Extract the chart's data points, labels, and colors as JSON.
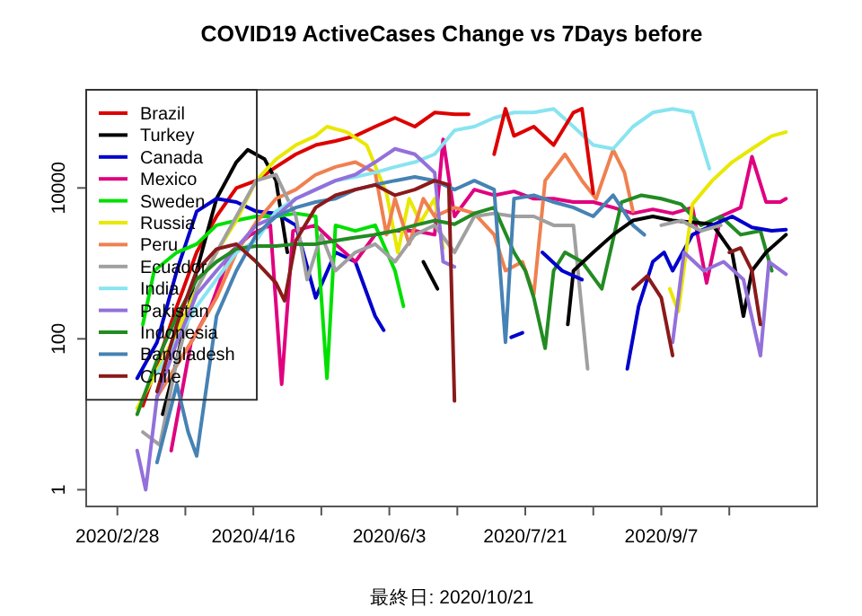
{
  "chart_data": {
    "type": "line",
    "title": "COVID19 ActiveCases Change vs 7Days before",
    "annotations": [
      "最終日: 2020/10/21"
    ],
    "xlim": [
      "2020-02-17",
      "2020-11-01"
    ],
    "xticks": [
      {
        "value": "2020-02-28",
        "label": "2020/2/28"
      },
      {
        "value": "2020-03-23",
        "label": null
      },
      {
        "value": "2020-04-16",
        "label": "2020/4/16"
      },
      {
        "value": "2020-05-10",
        "label": null
      },
      {
        "value": "2020-06-03",
        "label": "2020/6/3"
      },
      {
        "value": "2020-06-27",
        "label": null
      },
      {
        "value": "2020-07-21",
        "label": "2020/7/21"
      },
      {
        "value": "2020-08-14",
        "label": null
      },
      {
        "value": "2020-09-07",
        "label": "2020/9/7"
      },
      {
        "value": "2020-10-01",
        "label": null
      }
    ],
    "ylim": [
      0.6,
      200000
    ],
    "yticks": [
      1,
      100,
      10000
    ],
    "log": true,
    "grid": false,
    "legend": "top left",
    "series": [
      {
        "name": "Brazil",
        "color": "#dd0000",
        "x": [
          "2020-03-08",
          "2020-03-20",
          "2020-03-27",
          "2020-04-03",
          "2020-04-10",
          "2020-04-17",
          "2020-04-24",
          "2020-05-01",
          "2020-05-08",
          "2020-05-15",
          "2020-05-22",
          "2020-05-29",
          "2020-06-05",
          "2020-06-12",
          "2020-06-19",
          "2020-06-26",
          "2020-07-01"
        ],
        "values": [
          13,
          270,
          1400,
          4200,
          10000,
          12500,
          19000,
          28000,
          37000,
          42000,
          49000,
          65000,
          85000,
          65000,
          100000,
          95000,
          95000
        ]
      },
      {
        "name": "Turkey",
        "color": "#000000",
        "x": [
          "2020-03-15",
          "2020-03-20",
          "2020-03-27",
          "2020-04-03",
          "2020-04-10",
          "2020-04-14",
          "2020-04-20",
          "2020-04-24",
          "2020-04-28"
        ],
        "values": [
          10,
          52,
          800,
          7200,
          22000,
          32000,
          24000,
          12500,
          1400
        ]
      },
      {
        "name": "Canada",
        "color": "#0000cc",
        "x": [
          "2020-03-06",
          "2020-03-13",
          "2020-03-20",
          "2020-03-27",
          "2020-04-03",
          "2020-04-10",
          "2020-04-17",
          "2020-04-24",
          "2020-05-01",
          "2020-05-08",
          "2020-05-15",
          "2020-05-22",
          "2020-05-29",
          "2020-06-01"
        ],
        "values": [
          30,
          90,
          800,
          4900,
          7200,
          6500,
          4900,
          4600,
          3200,
          350,
          1400,
          1050,
          200,
          130
        ]
      },
      {
        "name": "Mexico",
        "color": "#e0007f",
        "x": [
          "2020-03-18",
          "2020-03-25",
          "2020-04-01",
          "2020-04-08",
          "2020-04-15",
          "2020-04-22",
          "2020-04-26",
          "2020-04-30",
          "2020-05-08",
          "2020-05-15",
          "2020-05-22",
          "2020-05-29",
          "2020-06-05",
          "2020-06-12",
          "2020-06-19",
          "2020-06-22",
          "2020-06-26",
          "2020-07-03",
          "2020-07-10",
          "2020-07-17",
          "2020-07-24",
          "2020-07-31",
          "2020-08-07",
          "2020-08-14",
          "2020-08-21",
          "2020-08-28",
          "2020-09-04",
          "2020-09-11",
          "2020-09-18",
          "2020-09-23",
          "2020-09-28",
          "2020-10-05",
          "2020-10-09",
          "2020-10-14",
          "2020-10-17",
          "2020-10-19",
          "2020-10-21"
        ],
        "values": [
          3.3,
          90,
          270,
          1400,
          2400,
          3200,
          25,
          2700,
          3200,
          1800,
          1050,
          2400,
          2700,
          2700,
          2400,
          44000,
          4200,
          9500,
          8000,
          9000,
          7200,
          7200,
          6500,
          6500,
          5500,
          4600,
          5200,
          4600,
          5500,
          550,
          4200,
          5500,
          26000,
          6500,
          6500,
          6500,
          7200
        ]
      },
      {
        "name": "Sweden",
        "color": "#00e000",
        "x": [
          "2020-03-08",
          "2020-03-12",
          "2020-03-20",
          "2020-03-27",
          "2020-04-03",
          "2020-04-10",
          "2020-04-17",
          "2020-04-24",
          "2020-05-01",
          "2020-05-08",
          "2020-05-12",
          "2020-05-15",
          "2020-05-22",
          "2020-05-29",
          "2020-06-05",
          "2020-06-08"
        ],
        "values": [
          155,
          800,
          1400,
          1800,
          3200,
          3700,
          4200,
          4200,
          4600,
          4200,
          30,
          3200,
          2700,
          3200,
          800,
          270
        ]
      },
      {
        "name": "Russia",
        "color": "#e8e800",
        "x": [
          "2020-03-06",
          "2020-03-20",
          "2020-03-27",
          "2020-04-03",
          "2020-04-10",
          "2020-04-17",
          "2020-04-24",
          "2020-05-01",
          "2020-05-08",
          "2020-05-12",
          "2020-05-19",
          "2020-05-26",
          "2020-06-02",
          "2020-06-06",
          "2020-06-10",
          "2020-06-14",
          "2020-06-19",
          "2020-06-22"
        ],
        "values": [
          12,
          120,
          460,
          1400,
          3700,
          12500,
          24000,
          37000,
          49000,
          65000,
          55000,
          37000,
          8500,
          1400,
          7200,
          3500,
          7200,
          1600
        ]
      },
      {
        "name": "Peru",
        "color": "#f08050",
        "x": [
          "2020-03-13",
          "2020-03-25",
          "2020-04-03",
          "2020-04-10",
          "2020-04-17",
          "2020-04-24",
          "2020-05-01",
          "2020-05-08",
          "2020-05-15",
          "2020-05-22",
          "2020-05-29",
          "2020-06-02",
          "2020-06-05",
          "2020-06-10",
          "2020-06-15",
          "2020-06-19",
          "2020-06-26",
          "2020-07-03",
          "2020-07-10",
          "2020-07-14",
          "2020-07-20",
          "2020-07-24",
          "2020-07-28",
          "2020-08-04",
          "2020-08-10",
          "2020-08-15",
          "2020-08-21",
          "2020-08-25",
          "2020-08-28"
        ],
        "values": [
          17,
          90,
          350,
          1400,
          3500,
          7200,
          9500,
          15000,
          19000,
          22000,
          16000,
          2400,
          7200,
          1800,
          7200,
          4200,
          5500,
          4600,
          2400,
          800,
          1050,
          390,
          12500,
          28000,
          12500,
          7200,
          32000,
          16000,
          4900
        ]
      },
      {
        "name": "Ecuador",
        "color": "#a0a0a0",
        "x": [
          "2020-03-08",
          "2020-03-14",
          "2020-03-20",
          "2020-03-27",
          "2020-04-03",
          "2020-04-10",
          "2020-04-17",
          "2020-04-24",
          "2020-05-01",
          "2020-05-05",
          "2020-05-10",
          "2020-05-15",
          "2020-05-22",
          "2020-05-29",
          "2020-06-05",
          "2020-06-12",
          "2020-06-19",
          "2020-06-26",
          "2020-07-03",
          "2020-07-10",
          "2020-07-17",
          "2020-07-24",
          "2020-07-31",
          "2020-08-07",
          "2020-08-12"
        ],
        "values": [
          5.8,
          3.9,
          52,
          460,
          1400,
          4200,
          12500,
          15000,
          4200,
          610,
          2400,
          800,
          1400,
          1800,
          1050,
          2400,
          3200,
          1400,
          4200,
          4600,
          4200,
          4200,
          3200,
          3200,
          40
        ]
      },
      {
        "name": "India",
        "color": "#88e4f0",
        "x": [
          "2020-03-13",
          "2020-03-27",
          "2020-04-10",
          "2020-04-17",
          "2020-04-24",
          "2020-05-01",
          "2020-05-08",
          "2020-05-15",
          "2020-05-22",
          "2020-05-29",
          "2020-06-05",
          "2020-06-12",
          "2020-06-19",
          "2020-06-26",
          "2020-07-03",
          "2020-07-10",
          "2020-07-17",
          "2020-07-24",
          "2020-07-31",
          "2020-08-07",
          "2020-08-14",
          "2020-08-21",
          "2020-08-28",
          "2020-09-04",
          "2020-09-11",
          "2020-09-18",
          "2020-09-24"
        ],
        "values": [
          35,
          270,
          1400,
          2000,
          4900,
          7200,
          9500,
          12500,
          14000,
          16000,
          19000,
          22000,
          28000,
          58000,
          65000,
          85000,
          100000,
          100000,
          112000,
          65000,
          37000,
          33000,
          65000,
          100000,
          112000,
          100000,
          18000
        ]
      },
      {
        "name": "Pakistan",
        "color": "#9370db",
        "x": [
          "2020-03-06",
          "2020-03-09",
          "2020-03-13",
          "2020-03-20",
          "2020-03-27",
          "2020-04-03",
          "2020-04-10",
          "2020-04-17",
          "2020-04-24",
          "2020-05-01",
          "2020-05-08",
          "2020-05-15",
          "2020-05-22",
          "2020-05-29",
          "2020-06-05",
          "2020-06-12",
          "2020-06-19",
          "2020-06-22",
          "2020-06-26"
        ],
        "values": [
          3.3,
          1,
          17,
          90,
          390,
          800,
          1600,
          3200,
          4200,
          7200,
          9500,
          12500,
          15000,
          22000,
          33000,
          28000,
          16000,
          1050,
          900
        ]
      },
      {
        "name": "Indonesia",
        "color": "#228b22",
        "x": [
          "2020-03-06",
          "2020-03-13",
          "2020-03-20",
          "2020-03-27",
          "2020-04-03",
          "2020-04-10",
          "2020-04-17",
          "2020-04-24",
          "2020-05-01",
          "2020-05-08",
          "2020-05-15",
          "2020-05-22",
          "2020-05-29",
          "2020-06-05",
          "2020-06-12",
          "2020-06-19",
          "2020-06-26",
          "2020-07-03",
          "2020-07-10",
          "2020-07-17",
          "2020-07-21",
          "2020-07-24",
          "2020-07-28",
          "2020-07-31",
          "2020-08-04",
          "2020-08-10",
          "2020-08-17",
          "2020-08-24",
          "2020-08-31",
          "2020-09-07",
          "2020-09-14",
          "2020-09-21",
          "2020-09-28",
          "2020-10-05",
          "2020-10-12",
          "2020-10-16"
        ],
        "values": [
          10,
          52,
          200,
          610,
          1050,
          1550,
          1700,
          1700,
          1800,
          1800,
          2000,
          2200,
          2400,
          2700,
          3200,
          3700,
          3300,
          4600,
          5500,
          1400,
          800,
          350,
          75,
          800,
          1400,
          1050,
          460,
          6500,
          8000,
          7200,
          6100,
          3200,
          4200,
          2400,
          2700,
          800
        ]
      },
      {
        "name": "Bangladesh",
        "color": "#4682b4",
        "x": [
          "2020-03-13",
          "2020-03-20",
          "2020-03-24",
          "2020-03-27",
          "2020-04-03",
          "2020-04-10",
          "2020-04-17",
          "2020-04-24",
          "2020-05-01",
          "2020-05-08",
          "2020-05-15",
          "2020-05-22",
          "2020-05-29",
          "2020-06-05",
          "2020-06-12",
          "2020-06-19",
          "2020-06-26",
          "2020-07-03",
          "2020-07-10",
          "2020-07-14",
          "2020-07-17",
          "2020-07-24",
          "2020-07-31",
          "2020-08-07",
          "2020-08-14",
          "2020-08-21",
          "2020-08-28",
          "2020-09-01"
        ],
        "values": [
          2.3,
          25,
          5.8,
          2.8,
          200,
          800,
          2400,
          4200,
          5500,
          6500,
          7200,
          9500,
          11000,
          12500,
          14000,
          12500,
          9500,
          12500,
          9500,
          90,
          7200,
          8000,
          6500,
          5500,
          4200,
          8000,
          3200,
          2400
        ]
      },
      {
        "name": "Chile",
        "color": "#8b1a1a",
        "x": [
          "2020-03-13",
          "2020-03-20",
          "2020-03-27",
          "2020-04-03",
          "2020-04-10",
          "2020-04-17",
          "2020-04-24",
          "2020-04-27",
          "2020-05-01",
          "2020-05-08",
          "2020-05-15",
          "2020-05-22",
          "2020-05-29",
          "2020-06-05",
          "2020-06-12",
          "2020-06-19",
          "2020-06-24",
          "2020-06-26"
        ],
        "values": [
          20,
          155,
          800,
          1550,
          1800,
          1050,
          550,
          320,
          2000,
          5500,
          8000,
          9500,
          11000,
          8000,
          9500,
          12500,
          11000,
          15
        ]
      },
      {
        "color": "#dd0000",
        "x": [
          "2020-07-10",
          "2020-07-14",
          "2020-07-17",
          "2020-07-24",
          "2020-07-31",
          "2020-08-07",
          "2020-08-10",
          "2020-08-14"
        ],
        "values": [
          28000,
          112000,
          49000,
          65000,
          37000,
          100000,
          112000,
          8500
        ]
      },
      {
        "color": "#000000",
        "x": [
          "2020-06-15",
          "2020-06-20"
        ],
        "values": [
          1050,
          460
        ]
      },
      {
        "color": "#000000",
        "x": [
          "2020-08-05",
          "2020-08-07",
          "2020-08-14",
          "2020-08-21",
          "2020-08-28",
          "2020-09-04",
          "2020-09-11",
          "2020-09-18",
          "2020-09-25",
          "2020-10-02",
          "2020-10-06",
          "2020-10-09",
          "2020-10-14",
          "2020-10-21"
        ],
        "values": [
          155,
          800,
          1400,
          2400,
          3700,
          4200,
          3700,
          3500,
          3300,
          1400,
          200,
          800,
          1400,
          2400
        ]
      },
      {
        "color": "#0000cc",
        "x": [
          "2020-07-16",
          "2020-07-20"
        ],
        "values": [
          105,
          120
        ]
      },
      {
        "color": "#0000cc",
        "x": [
          "2020-07-27",
          "2020-08-03",
          "2020-08-10"
        ],
        "values": [
          1400,
          800,
          610
        ]
      },
      {
        "color": "#0000cc",
        "x": [
          "2020-08-26",
          "2020-08-30",
          "2020-09-04",
          "2020-09-08",
          "2020-09-11",
          "2020-09-18",
          "2020-09-25",
          "2020-10-02",
          "2020-10-09",
          "2020-10-16",
          "2020-10-21"
        ],
        "values": [
          40,
          270,
          1050,
          1400,
          800,
          2400,
          3200,
          4200,
          3000,
          2700,
          2800
        ]
      },
      {
        "color": "#e8e800",
        "x": [
          "2020-09-10",
          "2020-09-13",
          "2020-09-18",
          "2020-09-25",
          "2020-10-02",
          "2020-10-09",
          "2020-10-16",
          "2020-10-21"
        ],
        "values": [
          460,
          230,
          6100,
          12500,
          22000,
          33000,
          49000,
          55000
        ]
      },
      {
        "color": "#a0a0a0",
        "x": [
          "2020-09-07",
          "2020-09-14",
          "2020-09-21",
          "2020-09-28"
        ],
        "values": [
          3200,
          3700,
          2700,
          3200
        ]
      },
      {
        "color": "#9370db",
        "x": [
          "2020-09-11",
          "2020-09-15",
          "2020-09-22",
          "2020-09-29",
          "2020-10-06",
          "2020-10-12",
          "2020-10-15",
          "2020-10-21"
        ],
        "values": [
          90,
          1400,
          800,
          1050,
          610,
          60,
          1050,
          720
        ]
      },
      {
        "color": "#8b1a1a",
        "x": [
          "2020-08-28",
          "2020-09-02",
          "2020-09-07",
          "2020-09-11"
        ],
        "values": [
          460,
          680,
          350,
          60
        ]
      },
      {
        "color": "#8b1a1a",
        "x": [
          "2020-10-01",
          "2020-10-05",
          "2020-10-09",
          "2020-10-12"
        ],
        "values": [
          1400,
          1600,
          800,
          155
        ]
      }
    ]
  }
}
